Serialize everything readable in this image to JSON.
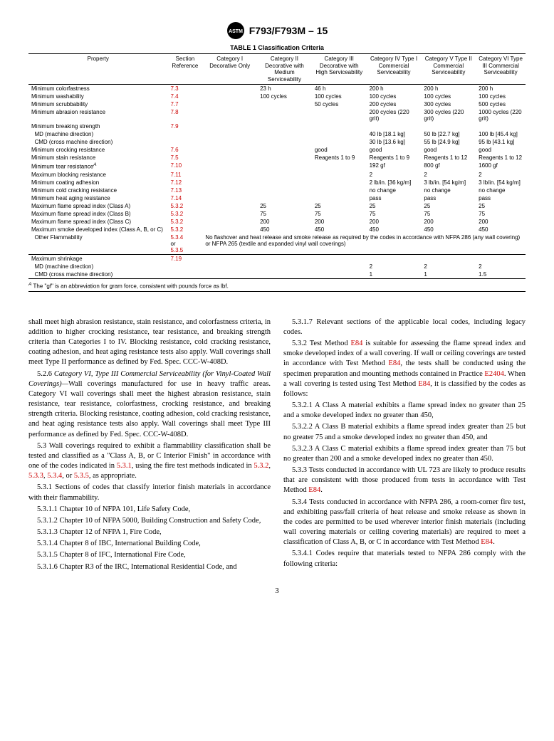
{
  "header": {
    "designation": "F793/F793M – 15"
  },
  "table": {
    "title": "TABLE 1 Classification Criteria",
    "headers": {
      "property": "Property",
      "section_ref": "Section Reference",
      "cat1": "Category I Decorative Only",
      "cat2": "Category II Decorative with Medium Serviceability",
      "cat3": "Category III Decorative with High Serviceability",
      "cat4": "Category IV Type I Commercial Serviceability",
      "cat5": "Category V Type II Commercial Serviceability",
      "cat6": "Category VI Type III Commercial Serviceability"
    },
    "rows": [
      {
        "prop": "Minimum colorfastness",
        "ref": "7.3",
        "c1": "",
        "c2": "23 h",
        "c3": "46 h",
        "c4": "200 h",
        "c5": "200 h",
        "c6": "200 h"
      },
      {
        "prop": "Minimum washability",
        "ref": "7.4",
        "c1": "",
        "c2": "100 cycles",
        "c3": "100 cycles",
        "c4": "100 cycles",
        "c5": "100 cycles",
        "c6": "100 cycles"
      },
      {
        "prop": "Minimum scrubbability",
        "ref": "7.7",
        "c1": "",
        "c2": "",
        "c3": "50 cycles",
        "c4": "200 cycles",
        "c5": "300 cycles",
        "c6": "500 cycles"
      },
      {
        "prop": "Minimum abrasion resistance",
        "ref": "7.8",
        "c1": "",
        "c2": "",
        "c3": "",
        "c4": "200 cycles (220 grit)",
        "c5": "300 cycles (220 grit)",
        "c6": "1000 cycles (220 grit)"
      },
      {
        "prop": "Minimum breaking strength",
        "ref": "7.9",
        "c1": "",
        "c2": "",
        "c3": "",
        "c4": "",
        "c5": "",
        "c6": ""
      },
      {
        "prop": "  MD (machine direction)",
        "ref": "",
        "c1": "",
        "c2": "",
        "c3": "",
        "c4": "40 lb [18.1 kg]",
        "c5": "50 lb [22.7 kg]",
        "c6": "100 lb [45.4 kg]"
      },
      {
        "prop": "  CMD (cross machine direction)",
        "ref": "",
        "c1": "",
        "c2": "",
        "c3": "",
        "c4": "30 lb [13.6 kg]",
        "c5": "55 lb [24.9 kg]",
        "c6": "95 lb [43.1 kg]"
      },
      {
        "prop": "Minimum crocking resistance",
        "ref": "7.6",
        "c1": "",
        "c2": "",
        "c3": "good",
        "c4": "good",
        "c5": "good",
        "c6": "good"
      },
      {
        "prop": "Minimum stain resistance",
        "ref": "7.5",
        "c1": "",
        "c2": "",
        "c3": "Reagents 1 to 9",
        "c4": "Reagents 1 to 9",
        "c5": "Reagents 1 to 12",
        "c6": "Reagents 1 to 12"
      },
      {
        "prop": "Minimum tear resistance",
        "sup": "A",
        "ref": "7.10",
        "c1": "",
        "c2": "",
        "c3": "",
        "c4": "192 gf",
        "c5": "800 gf",
        "c6": "1600 gf"
      },
      {
        "prop": "Maximum blocking resistance",
        "ref": "7.11",
        "c1": "",
        "c2": "",
        "c3": "",
        "c4": "2",
        "c5": "2",
        "c6": "2"
      },
      {
        "prop": "Minimum coating adhesion",
        "ref": "7.12",
        "c1": "",
        "c2": "",
        "c3": "",
        "c4": "2 lb/in. [36 kg/m]",
        "c5": "3 lb/in. [54 kg/m]",
        "c6": "3 lb/in. [54 kg/m]"
      },
      {
        "prop": "Minimum cold cracking resistance",
        "ref": "7.13",
        "c1": "",
        "c2": "",
        "c3": "",
        "c4": "no change",
        "c5": "no change",
        "c6": "no change"
      },
      {
        "prop": "Minimum heat aging resistance",
        "ref": "7.14",
        "c1": "",
        "c2": "",
        "c3": "",
        "c4": "pass",
        "c5": "pass",
        "c6": "pass"
      },
      {
        "prop": "Maximum flame spread index (Class A)",
        "ref": "5.3.2",
        "c1": "",
        "c2": "25",
        "c3": "25",
        "c4": "25",
        "c5": "25",
        "c6": "25"
      },
      {
        "prop": "Maximum flame spread index (Class B)",
        "ref": "5.3.2",
        "c1": "",
        "c2": "75",
        "c3": "75",
        "c4": "75",
        "c5": "75",
        "c6": "75"
      },
      {
        "prop": "Maximum flame spread index (Class C)",
        "ref": "5.3.2",
        "c1": "",
        "c2": "200",
        "c3": "200",
        "c4": "200",
        "c5": "200",
        "c6": "200"
      },
      {
        "prop": "Maximum smoke developed index (Class A, B, or C)",
        "ref": "5.3.2",
        "c1": "",
        "c2": "450",
        "c3": "450",
        "c4": "450",
        "c5": "450",
        "c6": "450"
      },
      {
        "prop": "  Other Flammability",
        "ref": "5.3.4 or 5.3.5",
        "note": "No flashover and heat release and smoke release as required by the codes in accordance with NFPA 286 (any wall covering) or NFPA 265 (textile and expanded vinyl wall coverings)"
      },
      {
        "prop": "Maximum shrinkage",
        "ref": "7.19",
        "c1": "",
        "c2": "",
        "c3": "",
        "c4": "",
        "c5": "",
        "c6": ""
      },
      {
        "prop": "  MD (machine direction)",
        "ref": "",
        "c1": "",
        "c2": "",
        "c3": "",
        "c4": "2",
        "c5": "2",
        "c6": "2"
      },
      {
        "prop": "  CMD (cross machine direction)",
        "ref": "",
        "c1": "",
        "c2": "",
        "c3": "",
        "c4": "1",
        "c5": "1",
        "c6": "1.5"
      }
    ],
    "footnote_label": "A",
    "footnote": " The \"gf\" is an abbreviation for gram force, consistent with pounds force as lbf."
  },
  "body": {
    "p1": "shall meet high abrasion resistance, stain resistance, and colorfastness criteria, in addition to higher crocking resistance, tear resistance, and breaking strength criteria than Categories I to IV. Blocking resistance, cold cracking resistance, coating adhesion, and heat aging resistance tests also apply. Wall coverings shall meet Type II performance as defined by Fed. Spec. CCC-W-408D.",
    "p2_num": "5.2.6 ",
    "p2_title": "Category VI, Type III Commercial Serviceability (for Vinyl-Coated Wall Coverings)—",
    "p2_rest": "Wall coverings manufactured for use in heavy traffic areas. Category VI wall coverings shall meet the highest abrasion resistance, stain resistance, tear resistance, colorfastness, crocking resistance, and breaking strength criteria. Blocking resistance, coating adhesion, cold cracking resistance, and heat aging resistance tests also apply. Wall coverings shall meet Type III performance as defined by Fed. Spec. CCC-W-408D.",
    "p3a": "5.3 Wall coverings required to exhibit a flammability classification shall be tested and classified as a \"Class A, B, or C Interior Finish\" in accordance with one of the codes indicated in ",
    "p3_r1": "5.3.1",
    "p3b": ", using the fire test methods indicated in ",
    "p3_r2": "5.3.2",
    "p3c": ", ",
    "p3_r3": "5.3.3",
    "p3d": ", ",
    "p3_r4": "5.3.4",
    "p3e": ", or ",
    "p3_r5": "5.3.5",
    "p3f": ", as appropriate.",
    "p4": "5.3.1 Sections of codes that classify interior finish materials in accordance with their flammability.",
    "p5": "5.3.1.1 Chapter 10 of NFPA 101, Life Safety Code,",
    "p6": "5.3.1.2 Chapter 10 of NFPA 5000, Building Construction and Safety Code,",
    "p7": "5.3.1.3 Chapter 12 of NFPA 1, Fire Code,",
    "p8": "5.3.1.4 Chapter 8 of IBC, International Building Code,",
    "p9": "5.3.1.5 Chapter 8 of IFC, International Fire Code,",
    "p10": "5.3.1.6 Chapter R3 of the IRC, International Residential Code, and",
    "p11": "5.3.1.7 Relevant sections of the applicable local codes, including legacy codes.",
    "p12a": "5.3.2 Test Method ",
    "p12_e1": "E84",
    "p12b": " is suitable for assessing the flame spread index and smoke developed index of a wall covering. If wall or ceiling coverings are tested in accordance with Test Method ",
    "p12_e2": "E84",
    "p12c": ", the tests shall be conducted using the specimen preparation and mounting methods contained in Practice ",
    "p12_e3": "E2404",
    "p12d": ". When a wall covering is tested using Test Method ",
    "p12_e4": "E84",
    "p12e": ", it is classified by the codes as follows:",
    "p13": "5.3.2.1 A Class A material exhibits a flame spread index no greater than 25 and a smoke developed index no greater than 450,",
    "p14": "5.3.2.2 A Class B material exhibits a flame spread index greater than 25 but no greater 75 and a smoke developed index no greater than 450, and",
    "p15": "5.3.2.3 A Class C material exhibits a flame spread index greater than 75 but no greater than 200 and a smoke developed index no greater than 450.",
    "p16a": "5.3.3 Tests conducted in accordance with UL 723 are likely to produce results that are consistent with those produced from tests in accordance with Test Method ",
    "p16_e": "E84",
    "p16b": ".",
    "p17a": "5.3.4 Tests conducted in accordance with NFPA 286, a room-corner fire test, and exhibiting pass/fail criteria of heat release and smoke release as shown in the codes are permitted to be used wherever interior finish materials (including wall covering materials or ceiling covering materials) are required to meet a classification of Class A, B, or C in accordance with Test Method ",
    "p17_e": "E84",
    "p17b": ".",
    "p18": "5.3.4.1 Codes require that materials tested to NFPA 286 comply with the following criteria:"
  },
  "page_number": "3"
}
